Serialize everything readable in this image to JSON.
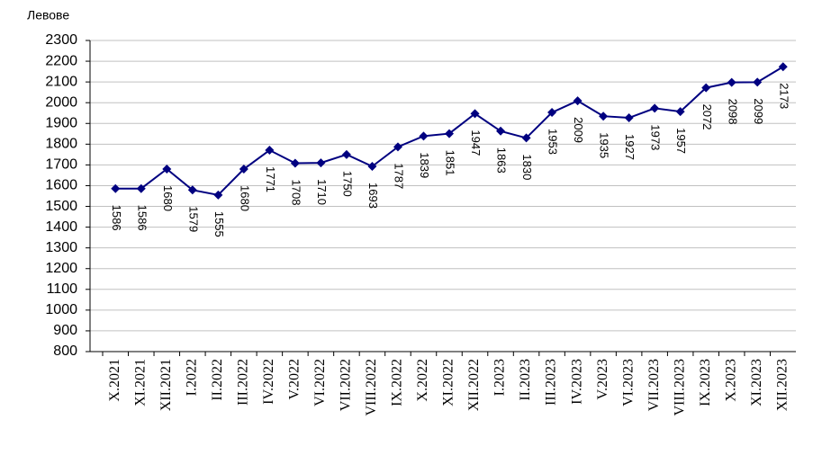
{
  "chart_data": {
    "type": "line",
    "y_axis_label": "Левове",
    "categories": [
      "X.2021",
      "XI.2021",
      "XII.2021",
      "I.2022",
      "II.2022",
      "III.2022",
      "IV.2022",
      "V.2022",
      "VI.2022",
      "VII.2022",
      "VIII.2022",
      "IX.2022",
      "X.2022",
      "XI.2022",
      "XII.2022",
      "I.2023",
      "II.2023",
      "III.2023",
      "IV.2023",
      "V.2023",
      "VI.2023",
      "VII.2023",
      "VIII.2023",
      "IX.2023",
      "X.2023",
      "XI.2023",
      "XII.2023"
    ],
    "series": [
      {
        "color": "#000080",
        "values": [
          1586,
          1586,
          1680,
          1579,
          1555,
          1680,
          1771,
          1708,
          1710,
          1750,
          1693,
          1787,
          1839,
          1851,
          1947,
          1863,
          1830,
          1953,
          2009,
          1935,
          1927,
          1973,
          1957,
          2072,
          2098,
          2099,
          2173
        ]
      }
    ],
    "ylim": [
      800,
      2300
    ],
    "yticks": [
      800,
      900,
      1000,
      1100,
      1200,
      1300,
      1400,
      1500,
      1600,
      1700,
      1800,
      1900,
      2000,
      2100,
      2200,
      2300
    ],
    "grid": true
  }
}
